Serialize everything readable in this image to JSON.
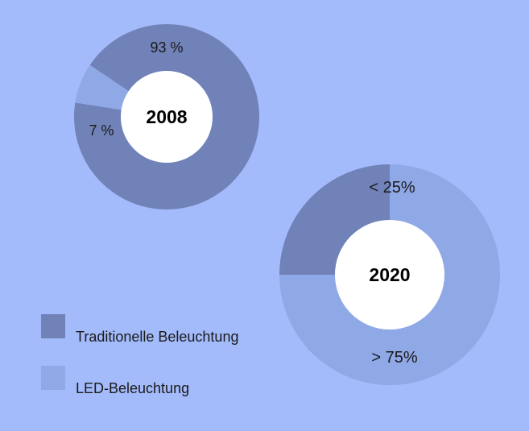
{
  "chart_data": [
    {
      "type": "pie",
      "variant": "donut",
      "center_label": "2008",
      "slices": [
        {
          "name": "Traditionelle Beleuchtung",
          "value": 93,
          "label": "93 %"
        },
        {
          "name": "LED-Beleuchtung",
          "value": 7,
          "label": "7 %"
        }
      ]
    },
    {
      "type": "pie",
      "variant": "donut",
      "center_label": "2020",
      "slices": [
        {
          "name": "Traditionelle Beleuchtung",
          "value": 25,
          "label": "< 25%"
        },
        {
          "name": "LED-Beleuchtung",
          "value": 75,
          "label": "> 75%"
        }
      ]
    }
  ],
  "legend": {
    "placement": "bottom-left",
    "items": [
      {
        "label": "Traditionelle Beleuchtung",
        "color": "#7082b8"
      },
      {
        "label": "LED-Beleuchtung",
        "color": "#8fa8e6"
      }
    ]
  },
  "colors": {
    "background": "#a3bbfb",
    "hole": "#ffffff",
    "traditional": "#7082b8",
    "led": "#8fa8e6",
    "text": "#1a1a1a"
  }
}
